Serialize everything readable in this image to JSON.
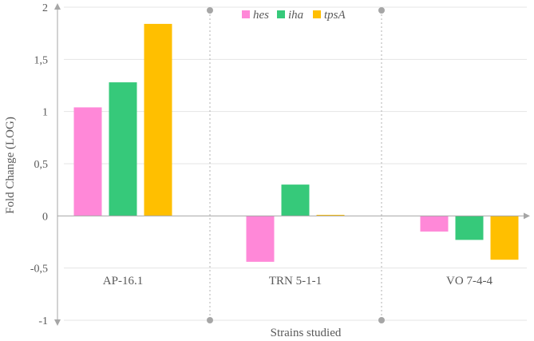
{
  "chart_data": {
    "type": "bar",
    "categories": [
      "AP-16.1",
      "TRN 5-1-1",
      "VO 7-4-4"
    ],
    "series": [
      {
        "name": "hes",
        "color": "#ff88d8",
        "values": [
          1.04,
          -0.44,
          -0.15
        ]
      },
      {
        "name": "iha",
        "color": "#36c97a",
        "values": [
          1.28,
          0.3,
          -0.23
        ]
      },
      {
        "name": "tpsA",
        "color": "#ffbf00",
        "values": [
          1.84,
          0.01,
          -0.42
        ]
      }
    ],
    "ylim": [
      -1,
      2
    ],
    "yticks": [
      "-1",
      "-0,5",
      "0",
      "0,5",
      "1",
      "1,5",
      "2"
    ],
    "ylabel": "Fold Change (LOG)",
    "xlabel": "Strains studied",
    "legend_position": "top",
    "grid": "horizontal",
    "category_separators": "dotted"
  }
}
